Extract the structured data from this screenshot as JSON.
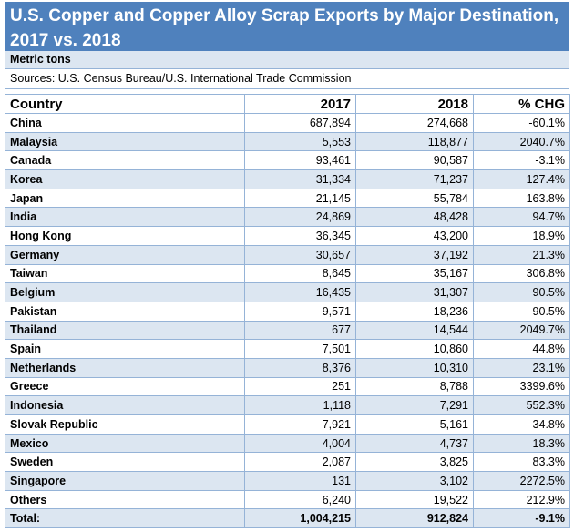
{
  "chart_data": {
    "type": "table",
    "title": "U.S. Copper and Copper Alloy Scrap Exports by Major Destination, 2017 vs. 2018",
    "unit": "Metric tons",
    "source": "Sources: U.S. Census Bureau/U.S. International Trade Commission",
    "columns": [
      "Country",
      "2017",
      "2018",
      "% CHG"
    ],
    "rows": [
      [
        "China",
        "687,894",
        "274,668",
        "-60.1%"
      ],
      [
        "Malaysia",
        "5,553",
        "118,877",
        "2040.7%"
      ],
      [
        "Canada",
        "93,461",
        "90,587",
        "-3.1%"
      ],
      [
        "Korea",
        "31,334",
        "71,237",
        "127.4%"
      ],
      [
        "Japan",
        "21,145",
        "55,784",
        "163.8%"
      ],
      [
        "India",
        "24,869",
        "48,428",
        "94.7%"
      ],
      [
        "Hong Kong",
        "36,345",
        "43,200",
        "18.9%"
      ],
      [
        "Germany",
        "30,657",
        "37,192",
        "21.3%"
      ],
      [
        "Taiwan",
        "8,645",
        "35,167",
        "306.8%"
      ],
      [
        "Belgium",
        "16,435",
        "31,307",
        "90.5%"
      ],
      [
        "Pakistan",
        "9,571",
        "18,236",
        "90.5%"
      ],
      [
        "Thailand",
        "677",
        "14,544",
        "2049.7%"
      ],
      [
        "Spain",
        "7,501",
        "10,860",
        "44.8%"
      ],
      [
        "Netherlands",
        "8,376",
        "10,310",
        "23.1%"
      ],
      [
        "Greece",
        "251",
        "8,788",
        "3399.6%"
      ],
      [
        "Indonesia",
        "1,118",
        "7,291",
        "552.3%"
      ],
      [
        "Slovak Republic",
        "7,921",
        "5,161",
        "-34.8%"
      ],
      [
        "Mexico",
        "4,004",
        "4,737",
        "18.3%"
      ],
      [
        "Sweden",
        "2,087",
        "3,825",
        "83.3%"
      ],
      [
        "Singapore",
        "131",
        "3,102",
        "2272.5%"
      ],
      [
        "Others",
        "6,240",
        "19,522",
        "212.9%"
      ]
    ],
    "total": [
      "Total:",
      "1,004,215",
      "912,824",
      "-9.1%"
    ],
    "colors": {
      "title_bg": "#4f81bd",
      "band": "#dce6f1",
      "border": "#95b3d7"
    }
  }
}
